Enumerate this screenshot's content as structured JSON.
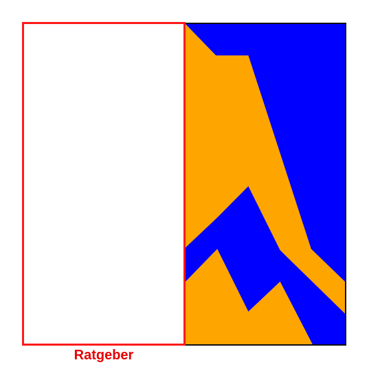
{
  "caption": {
    "text": "Ratgeber"
  },
  "colors": {
    "frame": "#ff1a1a",
    "caption": "#e60000",
    "sky": "#0000ff",
    "mountain": "#ffa500",
    "border": "#111111"
  }
}
